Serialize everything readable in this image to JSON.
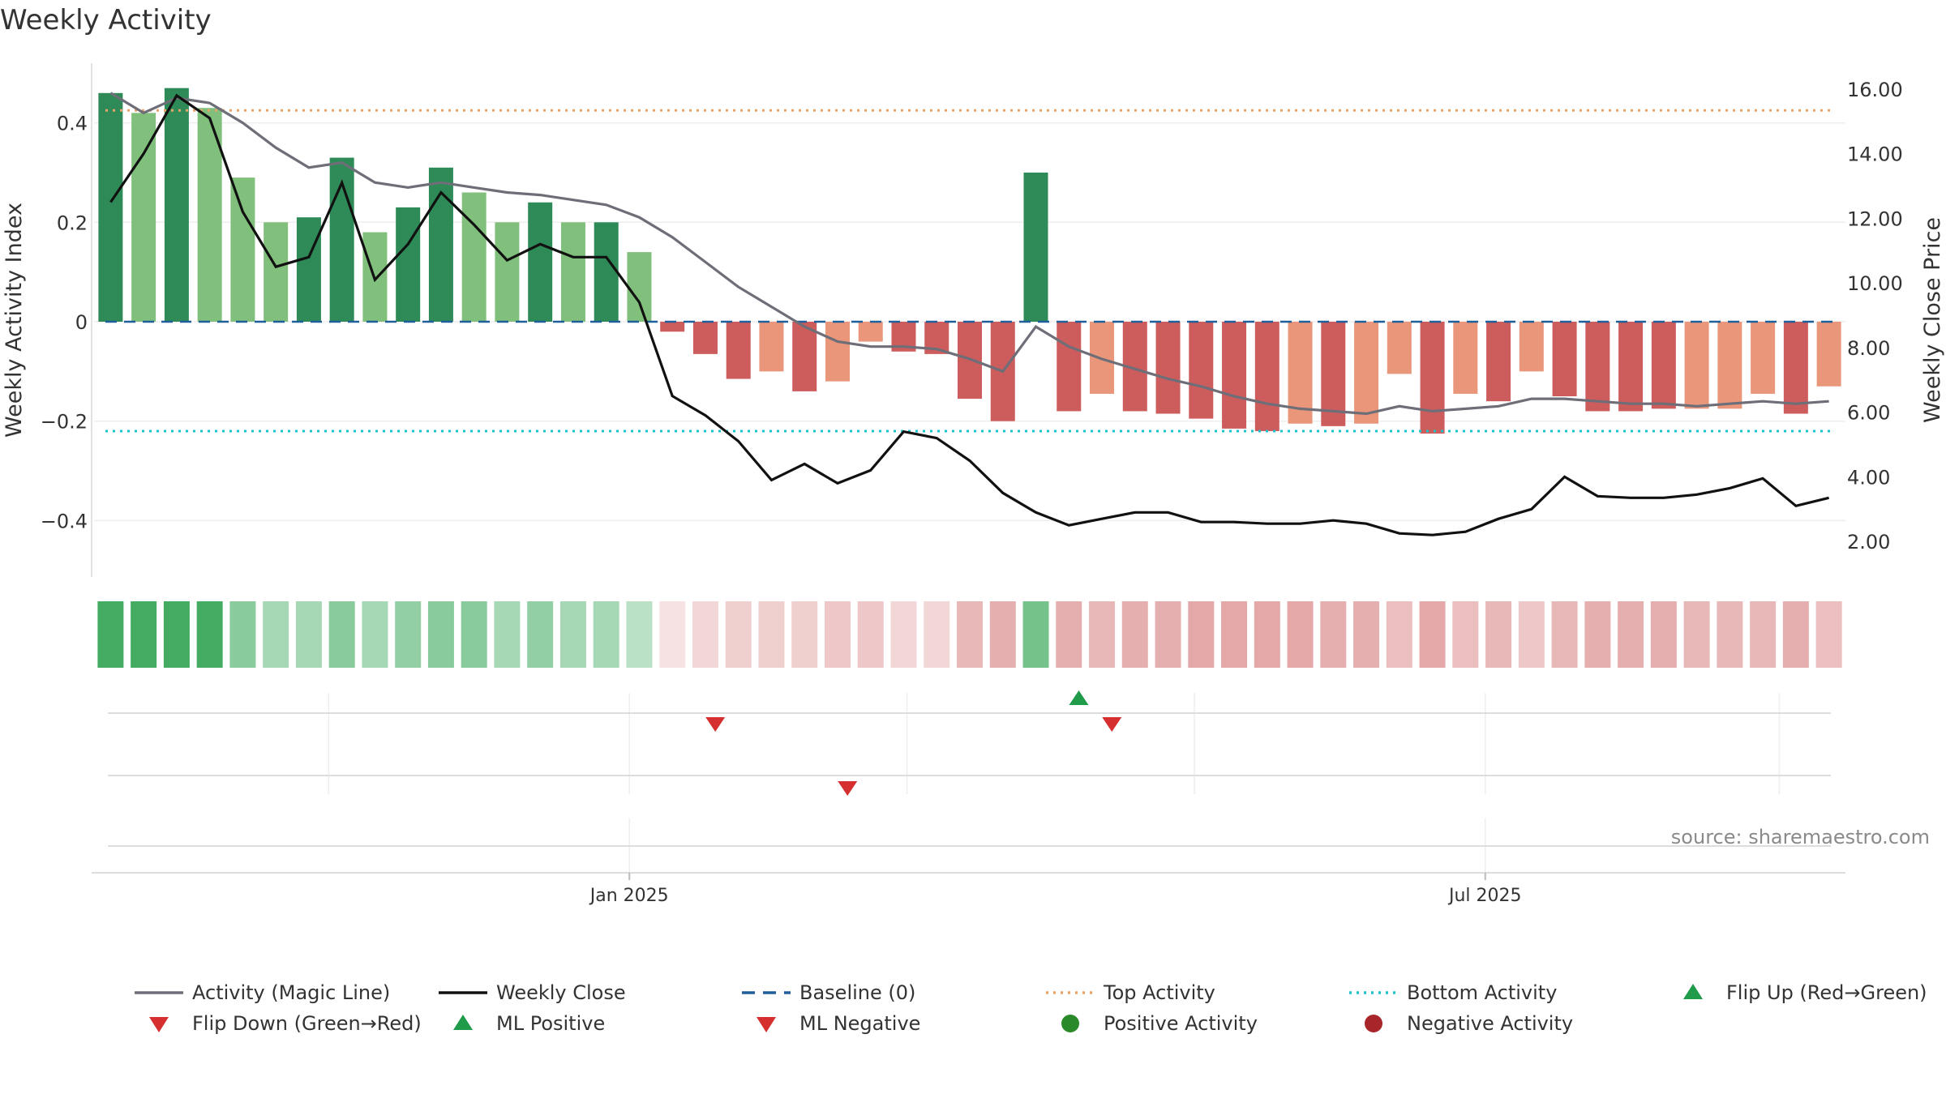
{
  "chart_data": {
    "type": "bar",
    "title": "Weekly Activity",
    "ylabel": "Weekly Activity Index",
    "ylabel_right": "Weekly Close Price",
    "ylim": [
      -0.52,
      0.52
    ],
    "ylim_right": [
      0.8,
      16.8
    ],
    "yticks": [
      {
        "value": 0.4,
        "label": "0.4"
      },
      {
        "value": 0.2,
        "label": "0.2"
      },
      {
        "value": 0,
        "label": "0"
      },
      {
        "value": -0.2,
        "label": "−0.2"
      },
      {
        "value": -0.4,
        "label": "−0.4"
      }
    ],
    "yticks_right": [
      {
        "value": 16,
        "label": "16.00"
      },
      {
        "value": 14,
        "label": "14.00"
      },
      {
        "value": 12,
        "label": "12.00"
      },
      {
        "value": 10,
        "label": "10.00"
      },
      {
        "value": 8,
        "label": "8.00"
      },
      {
        "value": 6,
        "label": "6.00"
      },
      {
        "value": 4,
        "label": "4.00"
      },
      {
        "value": 2,
        "label": "2.00"
      }
    ],
    "xticks": [
      {
        "label": "Jan 2025",
        "week": 15.7
      },
      {
        "label": "Jul 2025",
        "week": 41.6
      }
    ],
    "weeks": 53,
    "activity": [
      0.46,
      0.42,
      0.47,
      0.43,
      0.29,
      0.2,
      0.21,
      0.33,
      0.18,
      0.23,
      0.31,
      0.26,
      0.2,
      0.24,
      0.2,
      0.2,
      0.14,
      -0.02,
      -0.065,
      -0.115,
      -0.1,
      -0.14,
      -0.12,
      -0.04,
      -0.06,
      -0.065,
      -0.155,
      -0.2,
      0.3,
      -0.18,
      -0.145,
      -0.18,
      -0.185,
      -0.195,
      -0.215,
      -0.22,
      -0.205,
      -0.21,
      -0.205,
      -0.105,
      -0.225,
      -0.145,
      -0.16,
      -0.1,
      -0.15,
      -0.18,
      -0.18,
      -0.175,
      -0.175,
      -0.175,
      -0.145,
      -0.185,
      -0.13
    ],
    "activity_bar_shades": [
      "dark",
      "light",
      "dark",
      "light",
      "light",
      "light",
      "dark",
      "dark",
      "light",
      "dark",
      "dark",
      "light",
      "light",
      "dark",
      "light",
      "dark",
      "light",
      "dark",
      "dark",
      "dark",
      "light",
      "dark",
      "light",
      "light",
      "dark",
      "dark",
      "dark",
      "dark",
      "dark",
      "dark",
      "light",
      "dark",
      "dark",
      "dark",
      "dark",
      "dark",
      "light",
      "dark",
      "light",
      "light",
      "dark",
      "light",
      "dark",
      "light",
      "dark",
      "dark",
      "dark",
      "dark",
      "light",
      "light",
      "light",
      "dark",
      "light"
    ],
    "magic_line": [
      0.46,
      0.42,
      0.45,
      0.44,
      0.4,
      0.35,
      0.31,
      0.32,
      0.28,
      0.27,
      0.28,
      0.27,
      0.26,
      0.255,
      0.245,
      0.235,
      0.21,
      0.17,
      0.12,
      0.07,
      0.03,
      -0.01,
      -0.04,
      -0.05,
      -0.05,
      -0.055,
      -0.075,
      -0.1,
      -0.01,
      -0.05,
      -0.075,
      -0.095,
      -0.115,
      -0.13,
      -0.15,
      -0.165,
      -0.175,
      -0.18,
      -0.185,
      -0.17,
      -0.18,
      -0.175,
      -0.17,
      -0.155,
      -0.155,
      -0.16,
      -0.165,
      -0.165,
      -0.17,
      -0.165,
      -0.16,
      -0.165,
      -0.16
    ],
    "weekly_close": [
      12.5,
      14.0,
      15.8,
      15.1,
      12.2,
      10.5,
      10.8,
      13.1,
      10.1,
      11.2,
      12.8,
      11.8,
      10.7,
      11.2,
      10.8,
      10.8,
      9.4,
      6.5,
      5.9,
      5.1,
      3.9,
      4.4,
      3.8,
      4.2,
      5.4,
      5.2,
      4.5,
      3.5,
      2.9,
      2.5,
      2.7,
      2.9,
      2.9,
      2.6,
      2.6,
      2.55,
      2.55,
      2.65,
      2.55,
      2.25,
      2.2,
      2.3,
      2.7,
      3.0,
      4.0,
      3.4,
      3.35,
      3.35,
      3.45,
      3.65,
      3.95,
      3.1,
      3.35
    ],
    "baseline": 0,
    "top_activity": 0.425,
    "bottom_activity": -0.22,
    "heat_strip_alpha": [
      0.95,
      0.95,
      0.95,
      0.95,
      0.6,
      0.45,
      0.45,
      0.6,
      0.45,
      0.55,
      0.6,
      0.6,
      0.45,
      0.55,
      0.45,
      0.45,
      0.35,
      0.18,
      0.25,
      0.3,
      0.3,
      0.3,
      0.35,
      0.35,
      0.25,
      0.25,
      0.45,
      0.5,
      0.7,
      0.5,
      0.45,
      0.5,
      0.5,
      0.55,
      0.55,
      0.55,
      0.55,
      0.5,
      0.5,
      0.4,
      0.55,
      0.4,
      0.45,
      0.35,
      0.45,
      0.5,
      0.5,
      0.5,
      0.45,
      0.45,
      0.45,
      0.5,
      0.4
    ],
    "events": {
      "row1_up": [
        {
          "week": 29.3,
          "type": "Flip Up (Red→Green)"
        }
      ],
      "row1_down": [
        {
          "week": 18.3,
          "type": "Flip Down (Green→Red)"
        },
        {
          "week": 30.3,
          "type": "Flip Down (Green→Red)"
        }
      ],
      "row2_down": [
        {
          "week": 22.3,
          "type": "ML Negative"
        }
      ]
    },
    "legend": [
      {
        "label": "Activity (Magic Line)",
        "kind": "line",
        "color": "#6e6e78"
      },
      {
        "label": "Weekly Close",
        "kind": "line",
        "color": "#111111"
      },
      {
        "label": "Baseline (0)",
        "kind": "dash",
        "color": "#1f5f9a"
      },
      {
        "label": "Top Activity",
        "kind": "dot",
        "color": "#e8a36a"
      },
      {
        "label": "Bottom Activity",
        "kind": "dot",
        "color": "#1cc3c8"
      },
      {
        "label": "Flip Up (Red→Green)",
        "kind": "tri-up",
        "color": "#1f9b4a"
      },
      {
        "label": "Flip Down (Green→Red)",
        "kind": "tri-down",
        "color": "#d62f2f"
      },
      {
        "label": "ML Positive",
        "kind": "tri-up",
        "color": "#1f9b4a"
      },
      {
        "label": "ML Negative",
        "kind": "tri-down",
        "color": "#d62f2f"
      },
      {
        "label": "Positive Activity",
        "kind": "circle",
        "color": "#2a8a2a"
      },
      {
        "label": "Negative Activity",
        "kind": "circle",
        "color": "#a8252a"
      }
    ],
    "legend_position": "bottom",
    "grid": true,
    "source": "source: sharemaestro.com"
  },
  "colors": {
    "pos_dark": "#2e8b57",
    "pos_light": "#80c07c",
    "neg_dark": "#cd5c5c",
    "neg_light": "#e9967a",
    "strip_green": "#3aa85a",
    "strip_red": "#cd6060"
  }
}
